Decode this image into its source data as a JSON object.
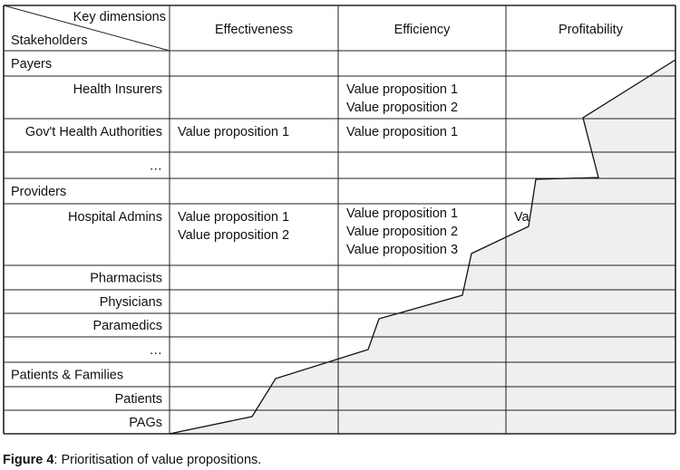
{
  "header": {
    "corner_top": "Key dimensions",
    "corner_bottom": "Stakeholders",
    "columns": [
      "Effectiveness",
      "Efficiency",
      "Profitability"
    ]
  },
  "rows": [
    {
      "label": "Payers",
      "group": true,
      "effectiveness": [],
      "efficiency": [],
      "profitability": []
    },
    {
      "label": "Health Insurers",
      "group": false,
      "effectiveness": [],
      "efficiency": [
        "Value proposition 1",
        "Value proposition 2"
      ],
      "profitability": []
    },
    {
      "label": "Gov't Health Authorities",
      "group": false,
      "effectiveness": [
        "Value proposition 1"
      ],
      "efficiency": [
        "Value proposition 1"
      ],
      "profitability": []
    },
    {
      "label": "…",
      "group": false,
      "effectiveness": [],
      "efficiency": [],
      "profitability": []
    },
    {
      "label": "Providers",
      "group": true,
      "effectiveness": [],
      "efficiency": [],
      "profitability": []
    },
    {
      "label": "Hospital Admins",
      "group": false,
      "effectiveness": [
        "Value proposition 1",
        "Value proposition 2"
      ],
      "efficiency": [
        "Value proposition 1",
        "Value proposition 2",
        "Value proposition 3"
      ],
      "profitability": [
        "Va"
      ]
    },
    {
      "label": "Pharmacists",
      "group": false,
      "effectiveness": [],
      "efficiency": [],
      "profitability": []
    },
    {
      "label": "Physicians",
      "group": false,
      "effectiveness": [],
      "efficiency": [],
      "profitability": []
    },
    {
      "label": "Paramedics",
      "group": false,
      "effectiveness": [],
      "efficiency": [],
      "profitability": []
    },
    {
      "label": "…",
      "group": false,
      "effectiveness": [],
      "efficiency": [],
      "profitability": []
    },
    {
      "label": "Patients & Families",
      "group": true,
      "effectiveness": [],
      "efficiency": [],
      "profitability": []
    },
    {
      "label": "Patients",
      "group": false,
      "effectiveness": [],
      "efficiency": [],
      "profitability": []
    },
    {
      "label": "PAGs",
      "group": false,
      "effectiveness": [],
      "efficiency": [],
      "profitability": []
    }
  ],
  "caption": {
    "label": "Figure 4",
    "text": ": Prioritisation of value propositions."
  },
  "colors": {
    "shade": "#efefef",
    "line": "#222222"
  }
}
